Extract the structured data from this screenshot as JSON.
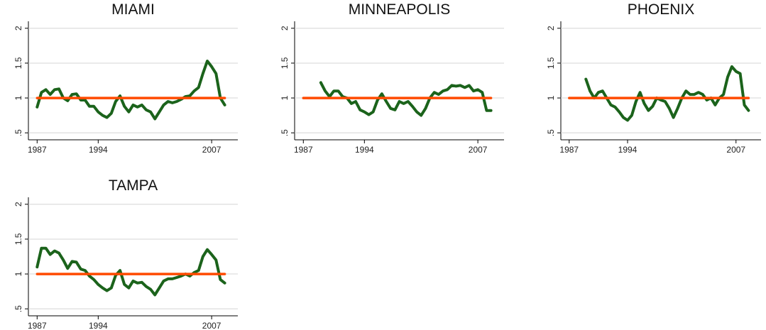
{
  "chart_data": [
    {
      "type": "line",
      "title": "MIAMI",
      "xlim": [
        1986,
        2010
      ],
      "ylim": [
        0.4,
        2.1
      ],
      "xticks": [
        1987,
        1994,
        2007
      ],
      "yticks": [
        {
          "value": 0.5,
          "label": ".5"
        },
        1,
        1.5,
        2
      ],
      "grid": true,
      "series": [
        {
          "color": "#1b631b",
          "x": [
            1987,
            1987.5,
            1988,
            1988.5,
            1989,
            1989.5,
            1990,
            1990.5,
            1991,
            1991.5,
            1992,
            1992.5,
            1993,
            1993.5,
            1994,
            1994.5,
            1995,
            1995.5,
            1996,
            1996.5,
            1997,
            1997.5,
            1998,
            1998.5,
            1999,
            1999.5,
            2000,
            2000.5,
            2001,
            2001.5,
            2002,
            2002.5,
            2003,
            2003.5,
            2004,
            2004.5,
            2005,
            2005.5,
            2006,
            2006.5,
            2007,
            2007.5,
            2008,
            2008.5
          ],
          "values": [
            0.87,
            1.08,
            1.12,
            1.05,
            1.12,
            1.13,
            1.0,
            0.96,
            1.05,
            1.06,
            0.97,
            0.97,
            0.88,
            0.88,
            0.8,
            0.75,
            0.72,
            0.78,
            0.95,
            1.03,
            0.88,
            0.8,
            0.9,
            0.87,
            0.9,
            0.83,
            0.8,
            0.7,
            0.8,
            0.9,
            0.95,
            0.93,
            0.95,
            0.98,
            1.02,
            1.03,
            1.1,
            1.15,
            1.35,
            1.53,
            1.45,
            1.35,
            1.0,
            0.9
          ]
        },
        {
          "color": "#ff4a00",
          "x": [
            1987,
            2008.5
          ],
          "values": [
            1,
            1
          ]
        }
      ]
    },
    {
      "type": "line",
      "title": "MINNEAPOLIS",
      "xlim": [
        1986,
        2010
      ],
      "ylim": [
        0.4,
        2.1
      ],
      "xticks": [
        1987,
        1994,
        2007
      ],
      "yticks": [
        {
          "value": 0.5,
          "label": ".5"
        },
        1,
        1.5,
        2
      ],
      "grid": true,
      "series": [
        {
          "color": "#1b631b",
          "x": [
            1989,
            1989.5,
            1990,
            1990.5,
            1991,
            1991.5,
            1992,
            1992.5,
            1993,
            1993.5,
            1994,
            1994.5,
            1995,
            1995.5,
            1996,
            1996.5,
            1997,
            1997.5,
            1998,
            1998.5,
            1999,
            1999.5,
            2000,
            2000.5,
            2001,
            2001.5,
            2002,
            2002.5,
            2003,
            2003.5,
            2004,
            2004.5,
            2005,
            2005.5,
            2006,
            2006.5,
            2007,
            2007.5,
            2008,
            2008.5
          ],
          "values": [
            1.22,
            1.1,
            1.02,
            1.1,
            1.1,
            1.02,
            1.0,
            0.92,
            0.95,
            0.83,
            0.8,
            0.76,
            0.8,
            0.97,
            1.06,
            0.95,
            0.85,
            0.83,
            0.95,
            0.92,
            0.95,
            0.88,
            0.8,
            0.75,
            0.85,
            1.0,
            1.08,
            1.05,
            1.1,
            1.12,
            1.18,
            1.17,
            1.18,
            1.15,
            1.18,
            1.1,
            1.12,
            1.08,
            0.82,
            0.82
          ]
        },
        {
          "color": "#ff4a00",
          "x": [
            1987,
            2008.5
          ],
          "values": [
            1,
            1
          ]
        }
      ]
    },
    {
      "type": "line",
      "title": "PHOENIX",
      "xlim": [
        1986,
        2010
      ],
      "ylim": [
        0.4,
        2.1
      ],
      "xticks": [
        1987,
        1994,
        2007
      ],
      "yticks": [
        {
          "value": 0.5,
          "label": ".5"
        },
        1,
        1.5,
        2
      ],
      "grid": true,
      "series": [
        {
          "color": "#1b631b",
          "x": [
            1989,
            1989.5,
            1990,
            1990.5,
            1991,
            1991.5,
            1992,
            1992.5,
            1993,
            1993.5,
            1994,
            1994.5,
            1995,
            1995.5,
            1996,
            1996.5,
            1997,
            1997.5,
            1998,
            1998.5,
            1999,
            1999.5,
            2000,
            2000.5,
            2001,
            2001.5,
            2002,
            2002.5,
            2003,
            2003.5,
            2004,
            2004.5,
            2005,
            2005.5,
            2006,
            2006.5,
            2007,
            2007.5,
            2008,
            2008.5
          ],
          "values": [
            1.27,
            1.1,
            1.0,
            1.08,
            1.1,
            1.0,
            0.9,
            0.87,
            0.8,
            0.72,
            0.68,
            0.75,
            0.95,
            1.08,
            0.92,
            0.82,
            0.88,
            1.0,
            0.97,
            0.95,
            0.85,
            0.72,
            0.85,
            1.0,
            1.1,
            1.05,
            1.05,
            1.08,
            1.05,
            0.97,
            1.0,
            0.9,
            1.0,
            1.05,
            1.3,
            1.45,
            1.38,
            1.35,
            0.9,
            0.82
          ]
        },
        {
          "color": "#ff4a00",
          "x": [
            1987,
            2008.5
          ],
          "values": [
            1,
            1
          ]
        }
      ]
    },
    {
      "type": "line",
      "title": "TAMPA",
      "xlim": [
        1986,
        2010
      ],
      "ylim": [
        0.4,
        2.1
      ],
      "xticks": [
        1987,
        1994,
        2007
      ],
      "yticks": [
        {
          "value": 0.5,
          "label": ".5"
        },
        1,
        1.5,
        2
      ],
      "grid": true,
      "series": [
        {
          "color": "#1b631b",
          "x": [
            1987,
            1987.5,
            1988,
            1988.5,
            1989,
            1989.5,
            1990,
            1990.5,
            1991,
            1991.5,
            1992,
            1992.5,
            1993,
            1993.5,
            1994,
            1994.5,
            1995,
            1995.5,
            1996,
            1996.5,
            1997,
            1997.5,
            1998,
            1998.5,
            1999,
            1999.5,
            2000,
            2000.5,
            2001,
            2001.5,
            2002,
            2002.5,
            2003,
            2003.5,
            2004,
            2004.5,
            2005,
            2005.5,
            2006,
            2006.5,
            2007,
            2007.5,
            2008,
            2008.5
          ],
          "values": [
            1.1,
            1.37,
            1.37,
            1.28,
            1.33,
            1.3,
            1.2,
            1.08,
            1.18,
            1.17,
            1.07,
            1.05,
            0.97,
            0.92,
            0.85,
            0.8,
            0.76,
            0.8,
            0.98,
            1.05,
            0.85,
            0.8,
            0.9,
            0.87,
            0.88,
            0.82,
            0.78,
            0.7,
            0.8,
            0.9,
            0.93,
            0.93,
            0.95,
            0.97,
            1.0,
            0.97,
            1.02,
            1.05,
            1.25,
            1.35,
            1.28,
            1.2,
            0.92,
            0.87
          ]
        },
        {
          "color": "#ff4a00",
          "x": [
            1987,
            2008.5
          ],
          "values": [
            1,
            1
          ]
        }
      ]
    }
  ]
}
